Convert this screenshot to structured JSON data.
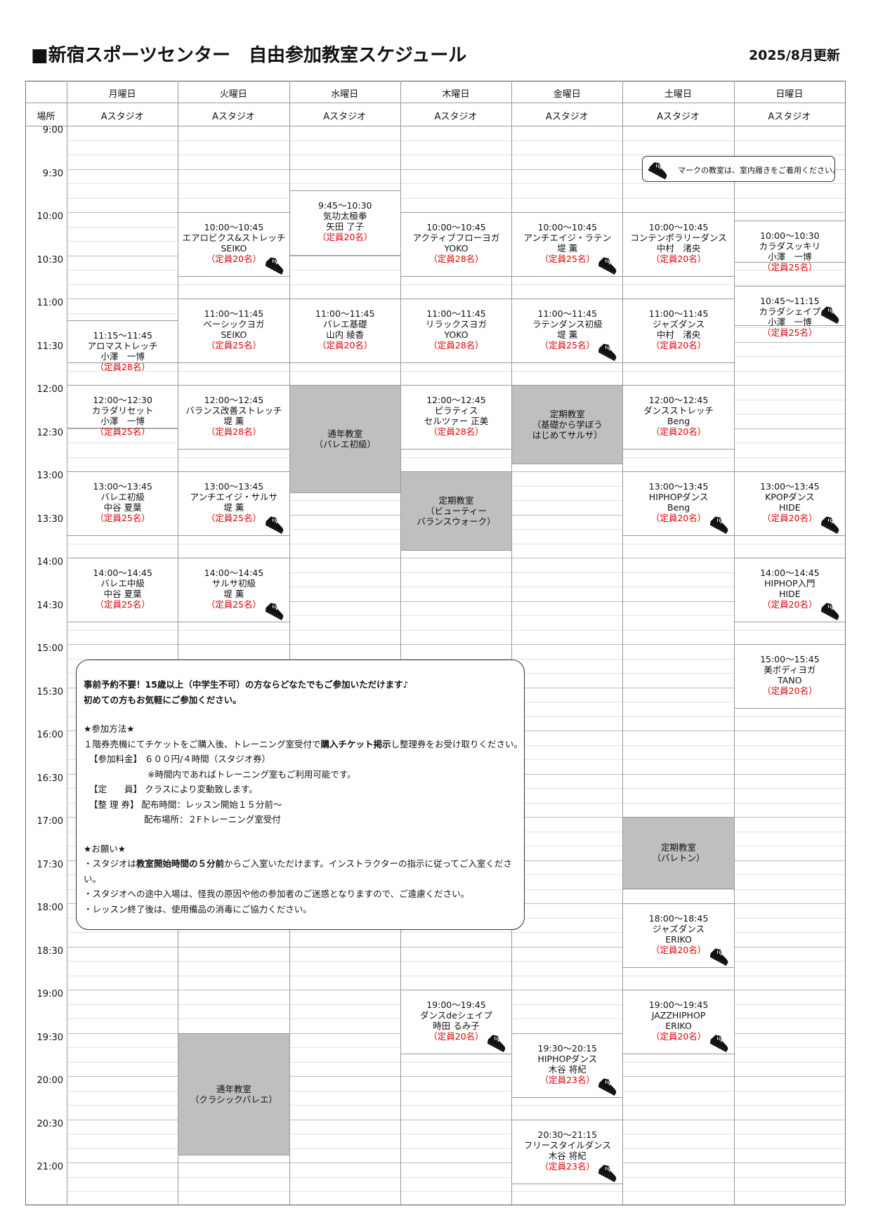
{
  "header": {
    "title": "■新宿スポーツセンター　自由参加教室スケジュール",
    "updated": "2025/8月更新"
  },
  "table": {
    "place_label": "場所",
    "times": [
      "9:00",
      "9:30",
      "10:00",
      "10:30",
      "11:00",
      "11:30",
      "12:00",
      "12:30",
      "13:00",
      "13:30",
      "14:00",
      "14:30",
      "15:00",
      "15:30",
      "16:00",
      "16:30",
      "17:00",
      "17:30",
      "18:00",
      "18:30",
      "19:00",
      "19:30",
      "20:00",
      "20:30",
      "21:00"
    ],
    "days": [
      {
        "name": "月曜日",
        "studio": "Aスタジオ",
        "classes": [
          {
            "time": "11:15～11:45",
            "name": "アロマストレッチ",
            "instructor": "小澤　一博",
            "capacity": "（定員28名）"
          },
          {
            "time": "12:00～12:30",
            "name": "カラダリセット",
            "instructor": "小澤　一博",
            "capacity": "（定員25名）"
          },
          {
            "time": "13:00～13:45",
            "name": "バレエ初級",
            "instructor": "中谷 夏葉",
            "capacity": "（定員25名）"
          },
          {
            "time": "14:00～14:45",
            "name": "バレエ中級",
            "instructor": "中谷 夏葉",
            "capacity": "（定員25名）"
          }
        ]
      },
      {
        "name": "火曜日",
        "studio": "Aスタジオ",
        "classes": [
          {
            "time": "10:00～10:45",
            "name": "エアロビクス&ストレッチ",
            "instructor": "SEIKO",
            "capacity": "（定員20名）"
          },
          {
            "time": "11:00～11:45",
            "name": "ベーシックヨガ",
            "instructor": "SEIKO",
            "capacity": "（定員25名）"
          },
          {
            "time": "12:00～12:45",
            "name": "バランス改善ストレッチ",
            "instructor": "堤 薫",
            "capacity": "（定員28名）"
          },
          {
            "time": "13:00～13:45",
            "name": "アンチエイジ・サルサ",
            "instructor": "堤 薫",
            "capacity": "（定員25名）"
          },
          {
            "time": "14:00～14:45",
            "name": "サルサ初級",
            "instructor": "堤 薫",
            "capacity": "（定員25名）"
          },
          {
            "lines": [
              "通年教室",
              "（クラシックバレエ）"
            ]
          }
        ]
      },
      {
        "name": "水曜日",
        "studio": "Aスタジオ",
        "classes": [
          {
            "time": "9:45～10:30",
            "name": "気功太極拳",
            "instructor": "矢田 了子",
            "capacity": "（定員20名）"
          },
          {
            "time": "11:00～11:45",
            "name": "バレエ基礎",
            "instructor": "山内 綾香",
            "capacity": "（定員20名）"
          },
          {
            "lines": [
              "通年教室",
              "（バレエ初級）"
            ]
          }
        ]
      },
      {
        "name": "木曜日",
        "studio": "Aスタジオ",
        "classes": [
          {
            "time": "10:00～10:45",
            "name": "アクティブフローヨガ",
            "instructor": "YOKO",
            "capacity": "（定員28名）"
          },
          {
            "time": "11:00～11:45",
            "name": "リラックスヨガ",
            "instructor": "YOKO",
            "capacity": "（定員28名）"
          },
          {
            "time": "12:00～12:45",
            "name": "ピラティス",
            "instructor": "セルツァー 正美",
            "capacity": "（定員28名）"
          },
          {
            "lines": [
              "定期教室",
              "（ビューティー",
              "バランスウォーク）"
            ]
          },
          {
            "time": "19:00～19:45",
            "name": "ダンスdeシェイプ",
            "instructor": "時田 るみ子",
            "capacity": "（定員20名）"
          }
        ]
      },
      {
        "name": "金曜日",
        "studio": "Aスタジオ",
        "classes": [
          {
            "time": "10:00～10:45",
            "name": "アンチエイジ・ラテン",
            "instructor": "堤 薫",
            "capacity": "（定員25名）"
          },
          {
            "time": "11:00～11:45",
            "name": "ラテンダンス初級",
            "instructor": "堤 薫",
            "capacity": "（定員25名）"
          },
          {
            "lines": [
              "定期教室",
              "（基礎から学ぼう",
              "はじめてサルサ）"
            ]
          },
          {
            "time": "19:30～20:15",
            "name": "HIPHOPダンス",
            "instructor": "木谷 将紀",
            "capacity": "（定員23名）"
          },
          {
            "time": "20:30～21:15",
            "name": "フリースタイルダンス",
            "instructor": "木谷 将紀",
            "capacity": "（定員23名）"
          }
        ]
      },
      {
        "name": "土曜日",
        "studio": "Aスタジオ",
        "classes": [
          {
            "time": "10:00～10:45",
            "name": "コンテンポラリーダンス",
            "instructor": "中村　渚央",
            "capacity": "（定員20名）"
          },
          {
            "time": "11:00～11:45",
            "name": "ジャズダンス",
            "instructor": "中村　渚央",
            "capacity": "（定員20名）"
          },
          {
            "time": "12:00～12:45",
            "name": "ダンスストレッチ",
            "instructor": "Beng",
            "capacity": "（定員20名）"
          },
          {
            "time": "13:00～13:45",
            "name": "HIPHOPダンス",
            "instructor": "Beng",
            "capacity": "（定員20名）"
          },
          {
            "lines": [
              "定期教室",
              "（バレトン）"
            ]
          },
          {
            "time": "18:00～18:45",
            "name": "ジャズダンス",
            "instructor": "ERIKO",
            "capacity": "（定員20名）"
          },
          {
            "time": "19:00～19:45",
            "name": "JAZZHIPHOP",
            "instructor": "ERIKO",
            "capacity": "（定員20名）"
          }
        ]
      },
      {
        "name": "日曜日",
        "studio": "Aスタジオ",
        "classes": [
          {
            "time": "10:00～10:30",
            "name": "カラダスッキリ",
            "instructor": "小澤　一博",
            "capacity": "（定員25名）"
          },
          {
            "time": "10:45～11:15",
            "name": "カラダシェイプ",
            "instructor": "小澤　一博",
            "capacity": "（定員25名）"
          },
          {
            "time": "13:00～13:45",
            "name": "KPOPダンス",
            "instructor": "HIDE",
            "capacity": "（定員20名）"
          },
          {
            "time": "14:00～14:45",
            "name": "HIPHOP入門",
            "instructor": "HIDE",
            "capacity": "（定員20名）"
          },
          {
            "time": "15:00～15:45",
            "name": "美ボディヨガ",
            "instructor": "TANO",
            "capacity": "（定員20名）"
          }
        ]
      }
    ]
  },
  "legend": "マークの教室は、室内履きをご着用ください。",
  "notice": {
    "lead": [
      "事前予約不要！15歳以上（中学生不可）の方ならどなたでもご参加いただけます♪",
      "初めての方もお気軽にご参加ください。"
    ],
    "method_title": "★参加方法★",
    "method_intro": [
      "１階券売機にてチケットをご購入後、トレーニング室受付で",
      "購入チケット掲示",
      "し整理券をお受け取りください。"
    ],
    "fee": "【参加料金】 ６００円/４時間（スタジオ券）",
    "fee_note": "※時間内であればトレーニング室もご利用可能です。",
    "capacity": "【定　　員】 クラスにより変動致します。",
    "ticket_time": "【整 理 券】 配布時間：レッスン開始１５分前～",
    "ticket_place": "配布場所：２Fトレーニング室受付",
    "request_title": "★お願い★",
    "request_1": [
      "・スタジオは",
      "教室開始時間の５分前",
      "からご入室いただけます。インストラクターの指示に従ってご入室ください。"
    ],
    "request_2": "・スタジオへの途中入場は、怪我の原因や他の参加者のご迷惑となりますので、ご遠慮ください。",
    "request_3": "・レッスン終了後は、使用備品の消毒にご協力ください。"
  }
}
